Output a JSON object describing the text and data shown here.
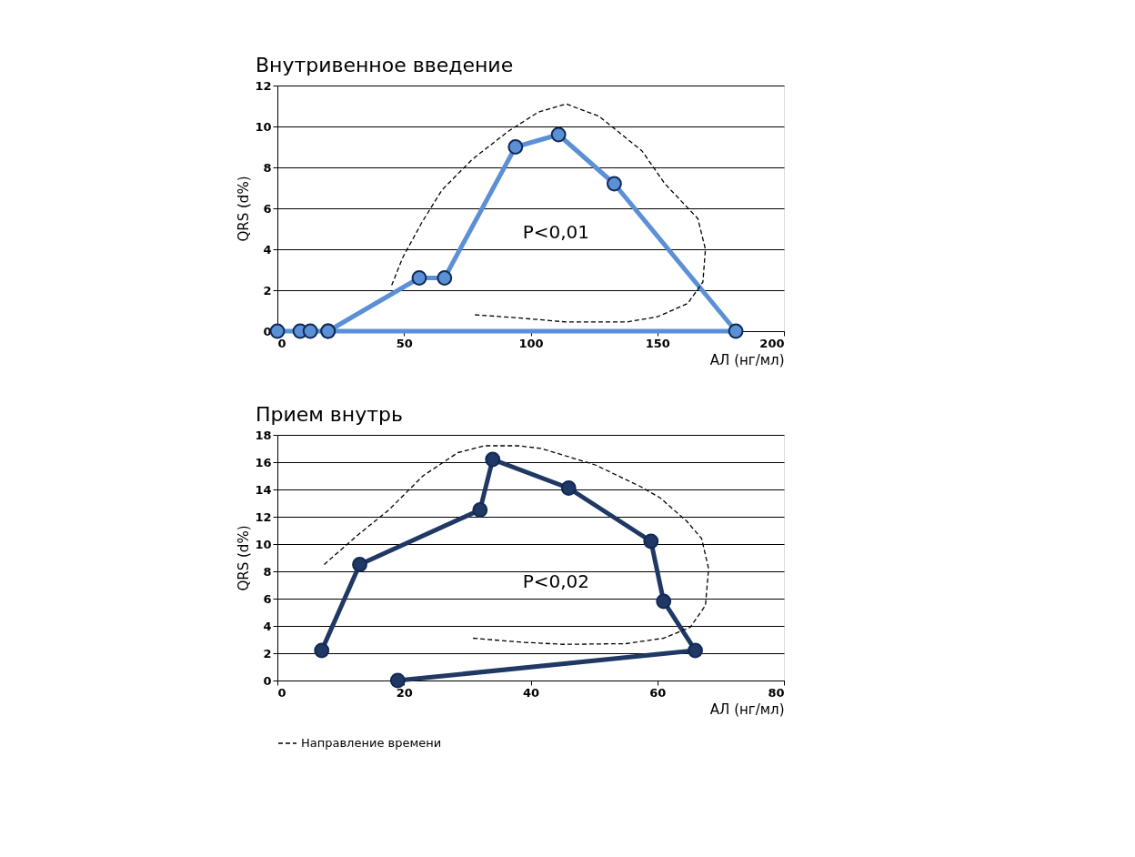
{
  "chart_data": [
    {
      "type": "line",
      "title": "Внутривенное введение",
      "xlabel": "АЛ (нг/мл)",
      "ylabel": "QRS (d%)",
      "xlim": [
        0,
        200
      ],
      "ylim": [
        0,
        12
      ],
      "xticks": [
        0,
        50,
        100,
        150,
        200
      ],
      "yticks": [
        0,
        2,
        4,
        6,
        8,
        10,
        12
      ],
      "grid": "y",
      "legend": false,
      "annotations": [
        "P<0,01"
      ],
      "series": [
        {
          "color": "#5b8fd6",
          "marker": "circle",
          "line_style": "solid",
          "x": [
            0,
            9,
            13,
            20,
            181,
            133,
            111,
            94,
            66,
            56,
            20
          ],
          "values": [
            0,
            0,
            0,
            0,
            0,
            7.2,
            9.6,
            9.0,
            2.6,
            2.6,
            0
          ]
        },
        {
          "color": "#000000",
          "marker": "none",
          "line_style": "dashed",
          "x": [
            78,
            95,
            114,
            138,
            150,
            162,
            168,
            169,
            166,
            153,
            144,
            127,
            114,
            103,
            91,
            77,
            65,
            57,
            49.5,
            45
          ],
          "values": [
            0.8,
            0.65,
            0.45,
            0.45,
            0.7,
            1.35,
            2.4,
            4.0,
            5.5,
            7.2,
            8.8,
            10.5,
            11.1,
            10.7,
            9.75,
            8.4,
            6.9,
            5.3,
            3.6,
            2.2
          ]
        }
      ]
    },
    {
      "type": "line",
      "title": "Прием внутрь",
      "xlabel": "АЛ (нг/мл)",
      "ylabel": "QRS (d%)",
      "xlim": [
        0,
        80
      ],
      "ylim": [
        0,
        18
      ],
      "xticks": [
        0,
        20,
        40,
        60,
        80
      ],
      "yticks": [
        0,
        2,
        4,
        6,
        8,
        10,
        12,
        14,
        16,
        18
      ],
      "grid": "y",
      "legend": "bottom",
      "annotations": [
        "P<0,02"
      ],
      "series": [
        {
          "color": "#1f3864",
          "marker": "circle",
          "line_style": "solid",
          "x": [
            19,
            66,
            61,
            59,
            46,
            34,
            32,
            13,
            7
          ],
          "values": [
            0,
            2.2,
            5.8,
            10.2,
            14.1,
            16.2,
            12.5,
            8.5,
            2.2
          ]
        },
        {
          "name": "Направление времени",
          "color": "#000000",
          "marker": "none",
          "line_style": "dashed",
          "x": [
            30.9,
            38.7,
            45.3,
            55,
            61,
            65.2,
            67.6,
            68.1,
            67,
            64.6,
            60.4,
            57.4,
            50.2,
            41.7,
            38.1,
            32.7,
            28.5,
            23,
            17.6,
            12.8,
            7.4
          ],
          "values": [
            3.1,
            2.8,
            2.65,
            2.7,
            3.1,
            3.9,
            5.5,
            8.2,
            10.4,
            11.7,
            13.4,
            14.2,
            15.8,
            17.0,
            17.2,
            17.2,
            16.7,
            15,
            12.5,
            10.7,
            8.5
          ]
        }
      ]
    }
  ]
}
